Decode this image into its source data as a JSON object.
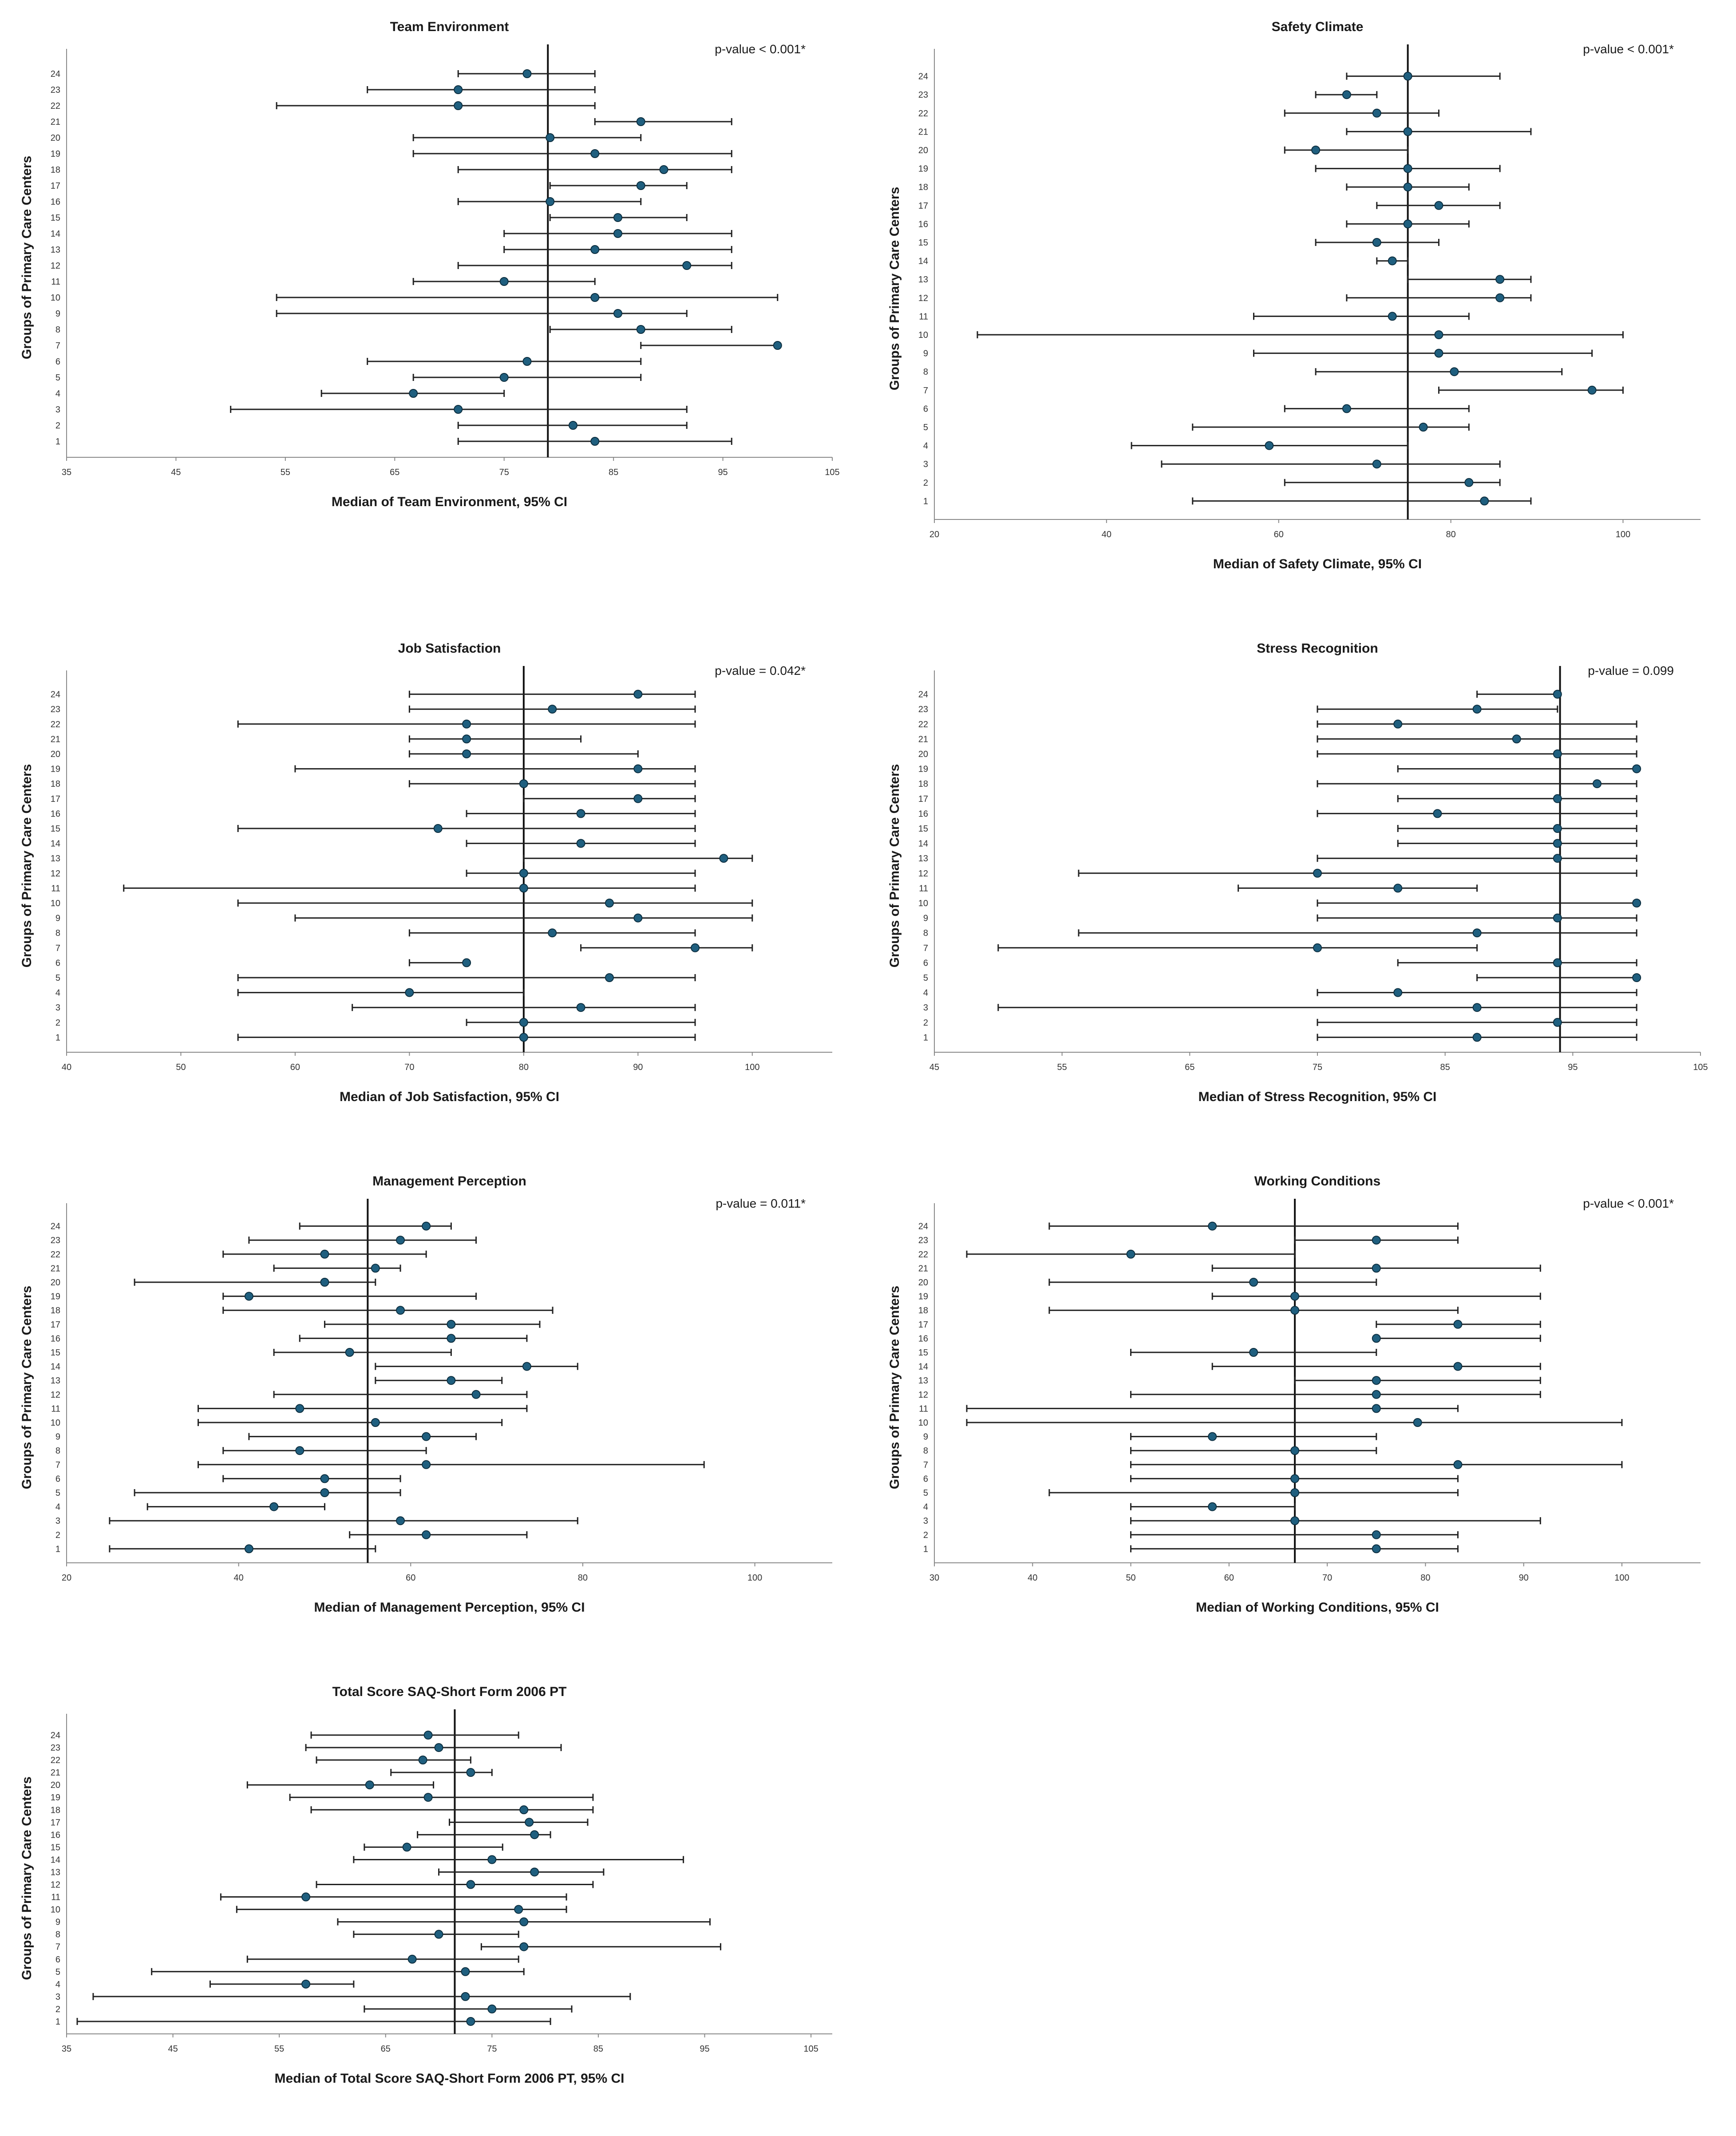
{
  "chart_data": [
    {
      "type": "scatter",
      "title": "Team Environment",
      "xlabel": "Median of Team Environment, 95% CI",
      "ylabel": "Groups of Primary Care Centers",
      "pvalue": "p-value < 0.001*",
      "xlim": [
        35,
        105
      ],
      "xticks": [
        35,
        45,
        55,
        65,
        75,
        85,
        95,
        105
      ],
      "reference": 79,
      "groups": [
        "1",
        "2",
        "3",
        "4",
        "5",
        "6",
        "7",
        "8",
        "9",
        "10",
        "11",
        "12",
        "13",
        "14",
        "15",
        "16",
        "17",
        "18",
        "19",
        "20",
        "21",
        "22",
        "23",
        "24"
      ],
      "median": [
        83.3,
        81.3,
        70.8,
        66.7,
        75,
        77.1,
        100,
        87.5,
        85.4,
        83.3,
        75,
        91.7,
        83.3,
        85.4,
        85.4,
        79.2,
        87.5,
        89.6,
        83.3,
        79.2,
        87.5,
        70.8,
        70.8,
        77.1
      ],
      "lower": [
        70.8,
        70.8,
        50,
        58.3,
        66.7,
        62.5,
        87.5,
        79.2,
        54.2,
        54.2,
        66.7,
        70.8,
        75,
        75,
        79.2,
        70.8,
        79.2,
        70.8,
        66.7,
        66.7,
        83.3,
        54.2,
        62.5,
        70.8
      ],
      "upper": [
        95.8,
        91.7,
        91.7,
        75,
        87.5,
        87.5,
        100,
        95.8,
        91.7,
        100,
        83.3,
        95.8,
        95.8,
        95.8,
        91.7,
        87.5,
        91.7,
        95.8,
        95.8,
        87.5,
        95.8,
        83.3,
        83.3,
        83.3
      ]
    },
    {
      "type": "scatter",
      "title": "Safety Climate",
      "xlabel": "Median of Safety Climate, 95% CI",
      "ylabel": "Groups of Primary Care Centers",
      "pvalue": "p-value < 0.001*",
      "xlim": [
        20,
        109
      ],
      "xticks": [
        20,
        40,
        60,
        80,
        100
      ],
      "reference": 75,
      "groups": [
        "1",
        "2",
        "3",
        "4",
        "5",
        "6",
        "7",
        "8",
        "9",
        "10",
        "11",
        "12",
        "13",
        "14",
        "15",
        "16",
        "17",
        "18",
        "19",
        "20",
        "21",
        "22",
        "23",
        "24"
      ],
      "median": [
        83.9,
        82.1,
        71.4,
        58.9,
        76.8,
        67.9,
        96.4,
        80.4,
        78.6,
        78.6,
        73.2,
        85.7,
        85.7,
        73.2,
        71.4,
        75,
        78.6,
        75,
        75,
        64.3,
        75,
        71.4,
        67.9,
        75
      ],
      "lower": [
        50,
        60.7,
        46.4,
        42.9,
        50,
        60.7,
        78.6,
        64.3,
        57.1,
        25,
        57.1,
        67.9,
        75,
        71.4,
        64.3,
        67.9,
        71.4,
        67.9,
        64.3,
        60.7,
        67.9,
        60.7,
        64.3,
        67.9
      ],
      "upper": [
        89.3,
        85.7,
        85.7,
        75,
        82.1,
        82.1,
        100,
        92.9,
        96.4,
        100,
        82.1,
        89.3,
        89.3,
        75,
        78.6,
        82.1,
        85.7,
        82.1,
        85.7,
        75,
        89.3,
        78.6,
        71.4,
        85.7
      ]
    },
    {
      "type": "scatter",
      "title": "Job Satisfaction",
      "xlabel": "Median of Job Satisfaction, 95% CI",
      "ylabel": "Groups of Primary Care Centers",
      "pvalue": "p-value = 0.042*",
      "xlim": [
        40,
        107
      ],
      "xticks": [
        40,
        50,
        60,
        70,
        80,
        90,
        100
      ],
      "reference": 80,
      "groups": [
        "1",
        "2",
        "3",
        "4",
        "5",
        "6",
        "7",
        "8",
        "9",
        "10",
        "11",
        "12",
        "13",
        "14",
        "15",
        "16",
        "17",
        "18",
        "19",
        "20",
        "21",
        "22",
        "23",
        "24"
      ],
      "median": [
        80,
        80,
        85,
        70,
        87.5,
        75,
        95,
        82.5,
        90,
        87.5,
        80,
        80,
        97.5,
        85,
        72.5,
        85,
        90,
        80,
        90,
        75,
        75,
        75,
        82.5,
        90
      ],
      "lower": [
        55,
        75,
        65,
        55,
        55,
        70,
        85,
        70,
        60,
        55,
        45,
        75,
        80,
        75,
        55,
        75,
        80,
        70,
        60,
        70,
        70,
        55,
        70,
        70
      ],
      "upper": [
        95,
        95,
        95,
        80,
        95,
        75,
        100,
        95,
        100,
        100,
        95,
        95,
        100,
        95,
        95,
        95,
        95,
        95,
        95,
        90,
        85,
        95,
        95,
        95
      ]
    },
    {
      "type": "scatter",
      "title": "Stress Recognition",
      "xlabel": "Median of Stress Recognition, 95% CI",
      "ylabel": "Groups of Primary Care Centers",
      "pvalue": "p-value = 0.099",
      "xlim": [
        45,
        105
      ],
      "xticks": [
        45,
        55,
        65,
        75,
        85,
        95,
        105
      ],
      "reference": 94,
      "groups": [
        "1",
        "2",
        "3",
        "4",
        "5",
        "6",
        "7",
        "8",
        "9",
        "10",
        "11",
        "12",
        "13",
        "14",
        "15",
        "16",
        "17",
        "18",
        "19",
        "20",
        "21",
        "22",
        "23",
        "24"
      ],
      "median": [
        87.5,
        93.8,
        87.5,
        81.3,
        100,
        93.8,
        75,
        87.5,
        93.8,
        100,
        81.3,
        75,
        93.8,
        93.8,
        93.8,
        84.4,
        93.8,
        96.9,
        100,
        93.8,
        90.6,
        81.3,
        87.5,
        93.8
      ],
      "lower": [
        75,
        75,
        50,
        75,
        87.5,
        81.3,
        50,
        56.3,
        75,
        75,
        68.8,
        56.3,
        75,
        81.3,
        81.3,
        75,
        81.3,
        75,
        81.3,
        75,
        75,
        75,
        75,
        87.5
      ],
      "upper": [
        100,
        100,
        100,
        100,
        100,
        100,
        87.5,
        100,
        100,
        100,
        87.5,
        100,
        100,
        100,
        100,
        100,
        100,
        100,
        100,
        100,
        100,
        100,
        93.8,
        93.8
      ]
    },
    {
      "type": "scatter",
      "title": "Management Perception",
      "xlabel": "Median of Management Perception, 95% CI",
      "ylabel": "Groups of Primary Care Centers",
      "pvalue": "p-value = 0.011*",
      "xlim": [
        20,
        109
      ],
      "xticks": [
        20,
        40,
        60,
        80,
        100
      ],
      "reference": 55,
      "groups": [
        "1",
        "2",
        "3",
        "4",
        "5",
        "6",
        "7",
        "8",
        "9",
        "10",
        "11",
        "12",
        "13",
        "14",
        "15",
        "16",
        "17",
        "18",
        "19",
        "20",
        "21",
        "22",
        "23",
        "24"
      ],
      "median": [
        41.2,
        61.8,
        58.8,
        44.1,
        50,
        50,
        61.8,
        47.1,
        61.8,
        55.9,
        47.1,
        67.6,
        64.7,
        73.5,
        52.9,
        64.7,
        64.7,
        58.8,
        41.2,
        50,
        55.9,
        50,
        58.8,
        61.8
      ],
      "lower": [
        25,
        52.9,
        25,
        29.4,
        27.9,
        38.2,
        35.3,
        38.2,
        41.2,
        35.3,
        35.3,
        44.1,
        55.9,
        55.9,
        44.1,
        47.1,
        50,
        38.2,
        38.2,
        27.9,
        44.1,
        38.2,
        41.2,
        47.1
      ],
      "upper": [
        55.9,
        73.5,
        79.4,
        50,
        58.8,
        58.8,
        94.1,
        61.8,
        67.6,
        70.6,
        73.5,
        73.5,
        70.6,
        79.4,
        64.7,
        73.5,
        75,
        76.5,
        67.6,
        55.9,
        58.8,
        61.8,
        67.6,
        64.7
      ]
    },
    {
      "type": "scatter",
      "title": "Working Conditions",
      "xlabel": "Median of Working Conditions, 95% CI",
      "ylabel": "Groups of Primary Care Centers",
      "pvalue": "p-value < 0.001*",
      "xlim": [
        30,
        108
      ],
      "xticks": [
        30,
        40,
        50,
        60,
        70,
        80,
        90,
        100
      ],
      "reference": 66.7,
      "groups": [
        "1",
        "2",
        "3",
        "4",
        "5",
        "6",
        "7",
        "8",
        "9",
        "10",
        "11",
        "12",
        "13",
        "14",
        "15",
        "16",
        "17",
        "18",
        "19",
        "20",
        "21",
        "22",
        "23",
        "24"
      ],
      "median": [
        75,
        75,
        66.7,
        58.3,
        66.7,
        66.7,
        83.3,
        66.7,
        58.3,
        79.2,
        75,
        75,
        75,
        83.3,
        62.5,
        75,
        83.3,
        66.7,
        66.7,
        62.5,
        75,
        50,
        75,
        58.3
      ],
      "lower": [
        50,
        50,
        50,
        50,
        41.7,
        50,
        50,
        50,
        50,
        33.3,
        33.3,
        50,
        66.7,
        58.3,
        50,
        75,
        75,
        41.7,
        58.3,
        41.7,
        58.3,
        33.3,
        66.7,
        41.7
      ],
      "upper": [
        83.3,
        83.3,
        91.7,
        66.7,
        83.3,
        83.3,
        100,
        75,
        75,
        100,
        83.3,
        91.7,
        91.7,
        91.7,
        75,
        91.7,
        91.7,
        83.3,
        91.7,
        75,
        91.7,
        66.7,
        83.3,
        83.3
      ]
    },
    {
      "type": "scatter",
      "title": "Total Score SAQ-Short Form 2006 PT",
      "xlabel": "Median of Total Score SAQ-Short Form 2006 PT, 95% CI",
      "ylabel": "Groups of Primary Care Centers",
      "pvalue": "",
      "xlim": [
        35,
        107
      ],
      "xticks": [
        35,
        45,
        55,
        65,
        75,
        85,
        95,
        105
      ],
      "reference": 71.5,
      "groups": [
        "1",
        "2",
        "3",
        "4",
        "5",
        "6",
        "7",
        "8",
        "9",
        "10",
        "11",
        "12",
        "13",
        "14",
        "15",
        "16",
        "17",
        "18",
        "19",
        "20",
        "21",
        "22",
        "23",
        "24"
      ],
      "median": [
        73,
        75,
        72.5,
        57.5,
        72.5,
        67.5,
        78,
        70,
        78,
        77.5,
        57.5,
        73,
        79,
        75,
        67,
        79,
        78.5,
        78,
        69,
        63.5,
        73,
        68.5,
        70,
        69
      ],
      "lower": [
        36,
        63,
        37.5,
        48.5,
        43,
        52,
        74,
        62,
        60.5,
        51,
        49.5,
        58.5,
        70,
        62,
        63,
        68,
        71,
        58,
        56,
        52,
        65.5,
        58.5,
        57.5,
        58
      ],
      "upper": [
        80.5,
        82.5,
        88,
        62,
        78,
        77.5,
        96.5,
        77.5,
        95.5,
        82,
        82,
        84.5,
        85.5,
        93,
        76,
        80.5,
        84,
        84.5,
        84.5,
        69.5,
        75,
        73,
        81.5,
        77.5
      ]
    }
  ]
}
